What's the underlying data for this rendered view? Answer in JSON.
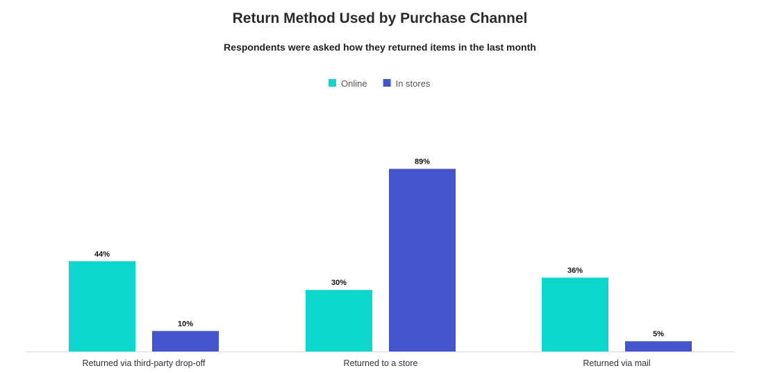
{
  "chart_data": {
    "type": "bar",
    "title": "Return Method Used by Purchase Channel",
    "subtitle": "Respondents were asked how they returned items in the last month",
    "categories": [
      "Returned via third-party drop-off",
      "Returned to a store",
      "Returned via mail"
    ],
    "series": [
      {
        "name": "Online",
        "color": "#0dd6cc",
        "values": [
          44,
          30,
          36
        ]
      },
      {
        "name": "In stores",
        "color": "#4455cc",
        "values": [
          10,
          89,
          5
        ]
      }
    ],
    "value_suffix": "%",
    "ylim": [
      0,
      100
    ],
    "grid": false,
    "legend_position": "top-center",
    "axis_line_color": "#dddddd"
  }
}
